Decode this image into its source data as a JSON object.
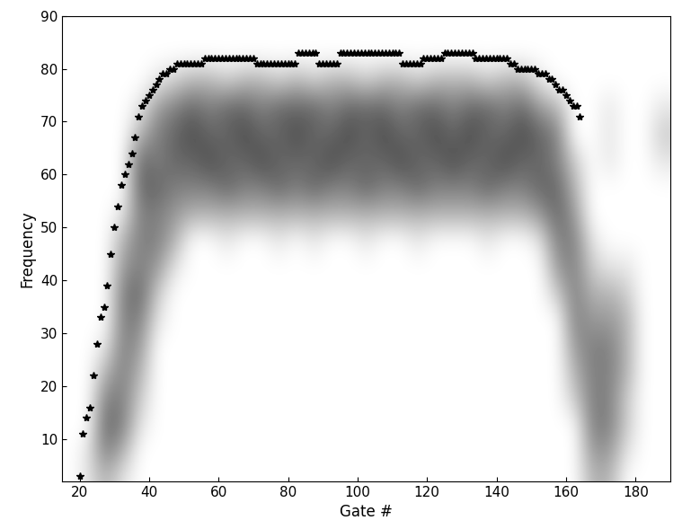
{
  "chart_data": {
    "type": "heatmap",
    "x_label": "Gate #",
    "y_label": "Frequency",
    "xlim": [
      15,
      190
    ],
    "ylim": [
      2,
      90
    ],
    "xticks": [
      20,
      40,
      60,
      80,
      100,
      120,
      140,
      160,
      180
    ],
    "yticks": [
      10,
      20,
      30,
      40,
      50,
      60,
      70,
      80,
      90
    ],
    "x_bins": [
      15,
      20,
      25,
      30,
      35,
      40,
      45,
      50,
      55,
      60,
      65,
      70,
      75,
      80,
      85,
      90,
      95,
      100,
      105,
      110,
      115,
      120,
      125,
      130,
      135,
      140,
      145,
      150,
      155,
      160,
      165,
      170,
      175,
      180,
      185,
      190
    ],
    "y_bins": [
      0,
      5,
      10,
      15,
      20,
      25,
      30,
      35,
      40,
      45,
      50,
      55,
      60,
      65,
      70,
      75,
      80,
      85,
      90
    ],
    "cell_range": [
      0,
      1
    ],
    "cells": [
      [
        0,
        0,
        0,
        0,
        0,
        0,
        0,
        0,
        0,
        0,
        0,
        0,
        0,
        0,
        0,
        0,
        0,
        0
      ],
      [
        0.1,
        0.1,
        0,
        0,
        0,
        0,
        0,
        0,
        0,
        0,
        0,
        0,
        0,
        0,
        0,
        0,
        0,
        0
      ],
      [
        0.3,
        0.5,
        0.6,
        0.5,
        0.3,
        0.1,
        0,
        0,
        0,
        0,
        0,
        0,
        0,
        0,
        0,
        0,
        0,
        0
      ],
      [
        0.1,
        0.3,
        0.5,
        0.5,
        0.5,
        0.5,
        0.5,
        0.5,
        0.4,
        0.3,
        0.1,
        0,
        0,
        0,
        0,
        0,
        0,
        0
      ],
      [
        0,
        0,
        0.1,
        0.2,
        0.3,
        0.4,
        0.5,
        0.6,
        0.5,
        0.5,
        0.5,
        0.6,
        0.6,
        0.3,
        0.1,
        0,
        0,
        0
      ],
      [
        0,
        0,
        0,
        0,
        0,
        0,
        0.1,
        0.2,
        0.4,
        0.5,
        0.5,
        0.6,
        0.5,
        0.5,
        0.4,
        0.1,
        0,
        0
      ],
      [
        0,
        0,
        0,
        0,
        0,
        0,
        0,
        0,
        0.1,
        0.3,
        0.4,
        0.5,
        0.6,
        0.6,
        0.5,
        0.2,
        0,
        0
      ],
      [
        0,
        0,
        0,
        0,
        0,
        0,
        0,
        0,
        0,
        0,
        0.3,
        0.5,
        0.6,
        0.7,
        0.6,
        0.3,
        0,
        0
      ],
      [
        0,
        0,
        0,
        0,
        0,
        0,
        0,
        0,
        0,
        0,
        0.3,
        0.5,
        0.7,
        0.6,
        0.5,
        0.3,
        0,
        0
      ],
      [
        0,
        0,
        0,
        0,
        0,
        0,
        0,
        0,
        0,
        0.1,
        0.3,
        0.6,
        0.6,
        0.6,
        0.6,
        0.2,
        0,
        0
      ],
      [
        0,
        0,
        0,
        0,
        0,
        0,
        0,
        0,
        0,
        0,
        0.3,
        0.5,
        0.6,
        0.7,
        0.6,
        0.3,
        0,
        0
      ],
      [
        0,
        0,
        0,
        0,
        0,
        0,
        0,
        0,
        0,
        0,
        0.3,
        0.5,
        0.7,
        0.6,
        0.5,
        0.3,
        0,
        0
      ],
      [
        0,
        0,
        0,
        0,
        0,
        0,
        0,
        0,
        0,
        0.1,
        0.3,
        0.6,
        0.6,
        0.6,
        0.6,
        0.2,
        0,
        0
      ],
      [
        0,
        0,
        0,
        0,
        0,
        0,
        0,
        0,
        0,
        0,
        0.3,
        0.5,
        0.6,
        0.7,
        0.6,
        0.3,
        0,
        0
      ],
      [
        0,
        0,
        0,
        0,
        0,
        0,
        0,
        0,
        0,
        0.1,
        0.3,
        0.6,
        0.6,
        0.6,
        0.6,
        0.2,
        0,
        0
      ],
      [
        0,
        0,
        0,
        0,
        0,
        0,
        0,
        0,
        0,
        0,
        0.3,
        0.5,
        0.7,
        0.6,
        0.5,
        0.3,
        0,
        0
      ],
      [
        0,
        0,
        0,
        0,
        0,
        0,
        0,
        0,
        0,
        0,
        0.3,
        0.5,
        0.6,
        0.7,
        0.6,
        0.3,
        0,
        0
      ],
      [
        0,
        0,
        0,
        0,
        0,
        0,
        0,
        0,
        0,
        0.1,
        0.3,
        0.6,
        0.6,
        0.6,
        0.6,
        0.2,
        0,
        0
      ],
      [
        0,
        0,
        0,
        0,
        0,
        0,
        0,
        0,
        0,
        0,
        0.3,
        0.5,
        0.6,
        0.7,
        0.6,
        0.3,
        0,
        0
      ],
      [
        0,
        0,
        0,
        0,
        0,
        0,
        0,
        0,
        0,
        0,
        0.3,
        0.5,
        0.7,
        0.6,
        0.5,
        0.3,
        0,
        0
      ],
      [
        0,
        0,
        0,
        0,
        0,
        0,
        0,
        0,
        0,
        0.1,
        0.3,
        0.6,
        0.6,
        0.6,
        0.6,
        0.2,
        0,
        0
      ],
      [
        0,
        0,
        0,
        0,
        0,
        0,
        0,
        0,
        0,
        0,
        0.3,
        0.5,
        0.6,
        0.7,
        0.6,
        0.3,
        0,
        0
      ],
      [
        0,
        0,
        0,
        0,
        0,
        0,
        0,
        0,
        0,
        0,
        0.3,
        0.5,
        0.7,
        0.6,
        0.5,
        0.3,
        0,
        0
      ],
      [
        0,
        0,
        0,
        0,
        0,
        0,
        0,
        0,
        0,
        0,
        0.3,
        0.5,
        0.6,
        0.7,
        0.6,
        0.3,
        0,
        0
      ],
      [
        0,
        0,
        0,
        0,
        0,
        0,
        0,
        0,
        0,
        0.1,
        0.3,
        0.6,
        0.6,
        0.6,
        0.6,
        0.2,
        0,
        0
      ],
      [
        0,
        0,
        0,
        0,
        0,
        0,
        0,
        0,
        0,
        0,
        0.3,
        0.5,
        0.7,
        0.6,
        0.5,
        0.3,
        0,
        0
      ],
      [
        0,
        0,
        0,
        0,
        0,
        0,
        0,
        0,
        0,
        0,
        0.3,
        0.5,
        0.6,
        0.7,
        0.6,
        0.3,
        0,
        0
      ],
      [
        0,
        0,
        0,
        0,
        0,
        0,
        0,
        0,
        0,
        0.1,
        0.4,
        0.6,
        0.6,
        0.6,
        0.4,
        0.1,
        0,
        0
      ],
      [
        0,
        0,
        0,
        0,
        0,
        0,
        0,
        0.2,
        0.4,
        0.5,
        0.6,
        0.6,
        0.5,
        0.5,
        0.3,
        0,
        0,
        0
      ],
      [
        0,
        0,
        0,
        0.2,
        0.3,
        0.4,
        0.5,
        0.5,
        0.5,
        0.5,
        0.4,
        0.3,
        0.2,
        0,
        0,
        0,
        0,
        0
      ],
      [
        0.3,
        0.4,
        0.5,
        0.5,
        0.5,
        0.5,
        0.4,
        0.3,
        0.2,
        0.1,
        0,
        0,
        0,
        0,
        0,
        0,
        0,
        0
      ],
      [
        0.3,
        0.4,
        0.5,
        0.5,
        0.5,
        0.5,
        0.4,
        0.3,
        0.1,
        0,
        0,
        0,
        0.1,
        0.1,
        0.1,
        0,
        0,
        0
      ],
      [
        0,
        0.1,
        0.2,
        0.2,
        0.3,
        0.3,
        0.3,
        0.2,
        0.1,
        0,
        0,
        0,
        0,
        0,
        0,
        0,
        0,
        0
      ],
      [
        0,
        0,
        0,
        0,
        0,
        0,
        0,
        0,
        0,
        0,
        0,
        0,
        0,
        0,
        0,
        0,
        0,
        0
      ],
      [
        0,
        0,
        0,
        0,
        0,
        0,
        0,
        0,
        0,
        0,
        0,
        0,
        0.1,
        0.2,
        0.1,
        0,
        0,
        0
      ]
    ],
    "series": [
      {
        "type": "scatter",
        "color": "#000000",
        "marker": "*",
        "x": [
          20,
          21,
          22,
          23,
          24,
          25,
          26,
          27,
          28,
          29,
          30,
          31,
          32,
          33,
          34,
          35,
          36,
          37,
          38,
          39,
          40,
          41,
          42,
          43,
          44,
          45,
          46,
          47,
          48,
          49,
          50,
          51,
          52,
          53,
          54,
          55,
          56,
          57,
          58,
          59,
          60,
          61,
          62,
          63,
          64,
          65,
          66,
          67,
          68,
          69,
          70,
          71,
          72,
          73,
          74,
          75,
          76,
          77,
          78,
          79,
          80,
          81,
          82,
          83,
          84,
          85,
          86,
          87,
          88,
          89,
          90,
          91,
          92,
          93,
          94,
          95,
          96,
          97,
          98,
          99,
          100,
          101,
          102,
          103,
          104,
          105,
          106,
          107,
          108,
          109,
          110,
          111,
          112,
          113,
          114,
          115,
          116,
          117,
          118,
          119,
          120,
          121,
          122,
          123,
          124,
          125,
          126,
          127,
          128,
          129,
          130,
          131,
          132,
          133,
          134,
          135,
          136,
          137,
          138,
          139,
          140,
          141,
          142,
          143,
          144,
          145,
          146,
          147,
          148,
          149,
          150,
          151,
          152,
          153,
          154,
          155,
          156,
          157,
          158,
          159,
          160,
          161,
          162,
          163,
          164
        ],
        "values": [
          3,
          11,
          14,
          16,
          22,
          28,
          33,
          35,
          39,
          45,
          50,
          54,
          58,
          60,
          62,
          64,
          67,
          71,
          73,
          74,
          75,
          76,
          77,
          78,
          79,
          79,
          80,
          80,
          81,
          81,
          81,
          81,
          81,
          81,
          81,
          81,
          82,
          82,
          82,
          82,
          82,
          82,
          82,
          82,
          82,
          82,
          82,
          82,
          82,
          82,
          82,
          81,
          81,
          81,
          81,
          81,
          81,
          81,
          81,
          81,
          81,
          81,
          81,
          83,
          83,
          83,
          83,
          83,
          83,
          81,
          81,
          81,
          81,
          81,
          81,
          83,
          83,
          83,
          83,
          83,
          83,
          83,
          83,
          83,
          83,
          83,
          83,
          83,
          83,
          83,
          83,
          83,
          83,
          81,
          81,
          81,
          81,
          81,
          81,
          82,
          82,
          82,
          82,
          82,
          82,
          83,
          83,
          83,
          83,
          83,
          83,
          83,
          83,
          83,
          82,
          82,
          82,
          82,
          82,
          82,
          82,
          82,
          82,
          82,
          81,
          81,
          80,
          80,
          80,
          80,
          80,
          80,
          79,
          79,
          79,
          78,
          78,
          77,
          76,
          76,
          75,
          74,
          73,
          73,
          71
        ]
      }
    ]
  }
}
